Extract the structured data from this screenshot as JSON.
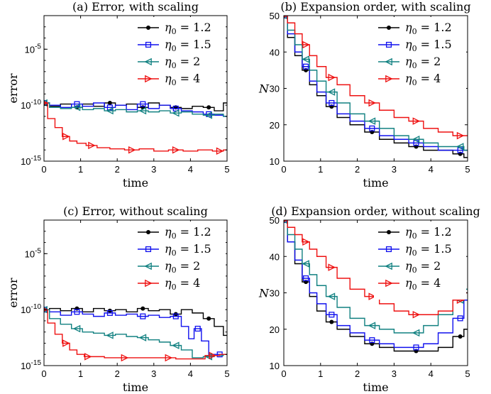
{
  "colors": {
    "black": "#000000",
    "blue": "#1010ee",
    "teal": "#108080",
    "red": "#ee1010"
  },
  "legend_eta": "η",
  "legend_sub": "0",
  "chart_data": [
    {
      "type": "line",
      "title": "(a) Error, with scaling",
      "xlabel": "time",
      "ylabel": "error",
      "yscale": "log",
      "xlim": [
        0,
        5
      ],
      "ylim": [
        1e-15,
        0.01
      ],
      "xticks": [
        "0",
        "1",
        "2",
        "3",
        "4",
        "5"
      ],
      "yticks": [
        {
          "base": "10",
          "exp": "-15",
          "v": -15
        },
        {
          "base": "10",
          "exp": "-10",
          "v": -10
        },
        {
          "base": "10",
          "exp": "-5",
          "v": -5
        }
      ],
      "legend": "top-right",
      "series": [
        {
          "name": "= 1.2",
          "color": "#000000",
          "marker": "dot",
          "x": [
            0,
            0.3,
            0.6,
            0.9,
            1.2,
            1.5,
            1.8,
            2.1,
            2.4,
            2.7,
            3.0,
            3.3,
            3.6,
            3.9,
            4.2,
            4.5,
            4.8,
            5.0
          ],
          "y": [
            -9.8,
            -10.1,
            -9.9,
            -10.2,
            -9.9,
            -10.1,
            -9.8,
            -10.0,
            -9.9,
            -10.2,
            -9.8,
            -10.0,
            -10.2,
            -10.3,
            -10.1,
            -10.2,
            -10.5,
            -9.8
          ]
        },
        {
          "name": "= 1.5",
          "color": "#1010ee",
          "marker": "square",
          "x": [
            0,
            0.3,
            0.6,
            0.9,
            1.2,
            1.5,
            1.8,
            2.1,
            2.4,
            2.7,
            3.0,
            3.3,
            3.6,
            3.9,
            4.2,
            4.5,
            4.8,
            5.0
          ],
          "y": [
            -9.8,
            -10.0,
            -10.2,
            -9.9,
            -10.1,
            -9.8,
            -10.2,
            -10.0,
            -10.4,
            -9.9,
            -10.3,
            -10.0,
            -10.3,
            -10.5,
            -10.6,
            -10.8,
            -10.9,
            -11.0
          ]
        },
        {
          "name": "= 2",
          "color": "#108080",
          "marker": "tri-left",
          "x": [
            0,
            0.3,
            0.6,
            0.9,
            1.2,
            1.5,
            1.8,
            2.1,
            2.4,
            2.7,
            3.0,
            3.3,
            3.6,
            3.9,
            4.2,
            4.5,
            4.8,
            5.0
          ],
          "y": [
            -9.8,
            -10.2,
            -10.3,
            -10.2,
            -10.4,
            -10.3,
            -10.5,
            -10.4,
            -10.6,
            -10.5,
            -10.6,
            -10.5,
            -10.7,
            -10.6,
            -10.8,
            -10.9,
            -10.8,
            -11.0
          ]
        },
        {
          "name": "= 4",
          "color": "#ee1010",
          "marker": "tri-right",
          "x": [
            0,
            0.2,
            0.4,
            0.6,
            0.8,
            1.0,
            1.3,
            1.6,
            2.0,
            2.4,
            2.8,
            3.2,
            3.6,
            4.0,
            4.4,
            4.8,
            5.0
          ],
          "y": [
            -9.8,
            -11.2,
            -12.0,
            -12.8,
            -13.2,
            -13.4,
            -13.6,
            -13.8,
            -13.9,
            -14.0,
            -13.9,
            -14.1,
            -14.0,
            -14.1,
            -14.0,
            -14.1,
            -14.0
          ]
        }
      ]
    },
    {
      "type": "line",
      "title": "(b) Expansion order, with scaling",
      "xlabel": "time",
      "ylabel": "N",
      "xlim": [
        0,
        5
      ],
      "ylim": [
        10,
        50
      ],
      "xticks": [
        "0",
        "1",
        "2",
        "3",
        "4",
        "5"
      ],
      "yticks": [
        "10",
        "20",
        "30",
        "40",
        "50"
      ],
      "legend": "top-right",
      "series": [
        {
          "name": "= 1.2",
          "color": "#000000",
          "marker": "dot",
          "x": [
            0,
            0.2,
            0.4,
            0.6,
            0.8,
            1.0,
            1.3,
            1.6,
            2.0,
            2.4,
            2.8,
            3.2,
            3.6,
            4.0,
            4.4,
            4.8,
            5.0
          ],
          "y": [
            50,
            44,
            39,
            35,
            31,
            28,
            25,
            22,
            20,
            18,
            16,
            15,
            14,
            13,
            13,
            12,
            11
          ]
        },
        {
          "name": "= 1.5",
          "color": "#1010ee",
          "marker": "square",
          "x": [
            0,
            0.2,
            0.4,
            0.6,
            0.8,
            1.0,
            1.3,
            1.6,
            2.0,
            2.4,
            2.8,
            3.2,
            3.6,
            4.0,
            4.4,
            4.8,
            5.0
          ],
          "y": [
            50,
            45,
            40,
            36,
            32,
            29,
            26,
            23,
            21,
            19,
            17,
            16,
            15,
            14,
            13,
            13,
            13
          ]
        },
        {
          "name": "= 2",
          "color": "#108080",
          "marker": "tri-left",
          "x": [
            0,
            0.2,
            0.4,
            0.6,
            0.8,
            1.0,
            1.3,
            1.6,
            2.0,
            2.4,
            2.8,
            3.2,
            3.6,
            4.0,
            4.4,
            4.8,
            5.0
          ],
          "y": [
            50,
            46,
            42,
            38,
            35,
            32,
            29,
            26,
            23,
            21,
            19,
            17,
            16,
            15,
            14,
            14,
            13
          ]
        },
        {
          "name": "= 4",
          "color": "#ee1010",
          "marker": "tri-right",
          "x": [
            0,
            0.2,
            0.4,
            0.6,
            0.8,
            1.0,
            1.3,
            1.6,
            2.0,
            2.4,
            2.8,
            3.2,
            3.6,
            4.0,
            4.4,
            4.8,
            5.0
          ],
          "y": [
            50,
            48,
            45,
            42,
            39,
            36,
            33,
            31,
            28,
            26,
            24,
            22,
            21,
            19,
            18,
            17,
            17
          ]
        }
      ]
    },
    {
      "type": "line",
      "title": "(c) Error, without scaling",
      "xlabel": "time",
      "ylabel": "error",
      "yscale": "log",
      "xlim": [
        0,
        5
      ],
      "ylim": [
        1e-15,
        0.01
      ],
      "xticks": [
        "0",
        "1",
        "2",
        "3",
        "4",
        "5"
      ],
      "yticks": [
        {
          "base": "10",
          "exp": "-15",
          "v": -15
        },
        {
          "base": "10",
          "exp": "-10",
          "v": -10
        },
        {
          "base": "10",
          "exp": "-5",
          "v": -5
        }
      ],
      "legend": "top-right",
      "series": [
        {
          "name": "= 1.2",
          "color": "#000000",
          "marker": "dot",
          "x": [
            0,
            0.3,
            0.6,
            0.9,
            1.2,
            1.5,
            1.8,
            2.1,
            2.4,
            2.7,
            3.0,
            3.3,
            3.6,
            3.9,
            4.2,
            4.5,
            4.8,
            5.0
          ],
          "y": [
            -10.0,
            -9.9,
            -10.1,
            -9.9,
            -10.2,
            -9.9,
            -10.1,
            -10.0,
            -10.2,
            -9.9,
            -10.1,
            -10.0,
            -10.4,
            -10.0,
            -10.3,
            -10.8,
            -11.5,
            -12.3
          ]
        },
        {
          "name": "= 1.5",
          "color": "#1010ee",
          "marker": "square",
          "x": [
            0,
            0.3,
            0.6,
            0.9,
            1.2,
            1.5,
            1.8,
            2.1,
            2.4,
            2.7,
            3.0,
            3.3,
            3.6,
            3.9,
            4.0,
            4.2,
            4.4,
            4.6,
            4.8,
            5.0
          ],
          "y": [
            -10.0,
            -10.2,
            -10.5,
            -10.2,
            -10.4,
            -10.6,
            -10.3,
            -10.5,
            -10.4,
            -10.6,
            -10.5,
            -10.7,
            -10.6,
            -11.5,
            -12.6,
            -11.7,
            -12.8,
            -14.0,
            -14.0,
            -14.0
          ]
        },
        {
          "name": "= 2",
          "color": "#108080",
          "marker": "tri-left",
          "x": [
            0,
            0.3,
            0.6,
            0.9,
            1.2,
            1.5,
            1.8,
            2.1,
            2.4,
            2.7,
            3.0,
            3.3,
            3.6,
            3.9,
            4.2,
            4.5,
            4.8,
            5.0
          ],
          "y": [
            -10.0,
            -10.8,
            -11.3,
            -11.7,
            -12.0,
            -12.1,
            -12.3,
            -12.2,
            -12.4,
            -12.5,
            -12.7,
            -12.9,
            -13.2,
            -13.6,
            -14.3,
            -14.2,
            -14.1,
            -14.0
          ]
        },
        {
          "name": "= 4",
          "color": "#ee1010",
          "marker": "tri-right",
          "x": [
            0,
            0.2,
            0.4,
            0.6,
            0.8,
            1.0,
            1.2,
            1.5,
            1.8,
            2.2,
            2.6,
            3.0,
            3.4,
            3.8,
            4.2,
            4.6,
            5.0
          ],
          "y": [
            -10.0,
            -11.2,
            -12.2,
            -13.0,
            -13.6,
            -14.0,
            -14.2,
            -14.2,
            -14.3,
            -14.3,
            -14.3,
            -14.3,
            -14.3,
            -14.4,
            -14.4,
            -14.1,
            -14.0
          ]
        }
      ]
    },
    {
      "type": "line",
      "title": "(d) Expansion order, without scaling",
      "xlabel": "time",
      "ylabel": "N",
      "xlim": [
        0,
        5
      ],
      "ylim": [
        10,
        50
      ],
      "xticks": [
        "0",
        "1",
        "2",
        "3",
        "4",
        "5"
      ],
      "yticks": [
        "10",
        "20",
        "30",
        "40",
        "50"
      ],
      "legend": "top-right",
      "series": [
        {
          "name": "= 1.2",
          "color": "#000000",
          "marker": "dot",
          "x": [
            0,
            0.2,
            0.4,
            0.6,
            0.8,
            1.0,
            1.3,
            1.6,
            2.0,
            2.4,
            2.8,
            3.2,
            3.6,
            4.0,
            4.4,
            4.8,
            5.0
          ],
          "y": [
            50,
            44,
            38,
            33,
            29,
            25,
            22,
            20,
            18,
            16,
            15,
            14,
            14,
            14,
            15,
            18,
            20
          ]
        },
        {
          "name": "= 1.5",
          "color": "#1010ee",
          "marker": "square",
          "x": [
            0,
            0.2,
            0.4,
            0.6,
            0.8,
            1.0,
            1.3,
            1.6,
            2.0,
            2.4,
            2.8,
            3.2,
            3.6,
            4.0,
            4.4,
            4.8,
            5.0
          ],
          "y": [
            50,
            44,
            39,
            34,
            30,
            27,
            24,
            21,
            19,
            17,
            16,
            15,
            15,
            16,
            19,
            23,
            28
          ]
        },
        {
          "name": "= 2",
          "color": "#108080",
          "marker": "tri-left",
          "x": [
            0,
            0.2,
            0.4,
            0.6,
            0.8,
            1.0,
            1.3,
            1.6,
            2.0,
            2.4,
            2.8,
            3.2,
            3.6,
            4.0,
            4.4,
            4.8,
            5.0
          ],
          "y": [
            50,
            46,
            42,
            38,
            35,
            32,
            29,
            26,
            23,
            21,
            20,
            19,
            19,
            21,
            24,
            28,
            31
          ]
        },
        {
          "name": "= 4",
          "color": "#ee1010",
          "marker": "tri-right",
          "x": [
            0,
            0.2,
            0.4,
            0.6,
            0.8,
            1.0,
            1.3,
            1.6,
            2.0,
            2.4,
            2.8,
            3.2,
            3.6,
            4.0,
            4.4,
            4.8,
            5.0
          ],
          "y": [
            50,
            48,
            46,
            44,
            42,
            40,
            37,
            34,
            31,
            29,
            27,
            25,
            24,
            24,
            25,
            28,
            30
          ]
        }
      ]
    }
  ]
}
